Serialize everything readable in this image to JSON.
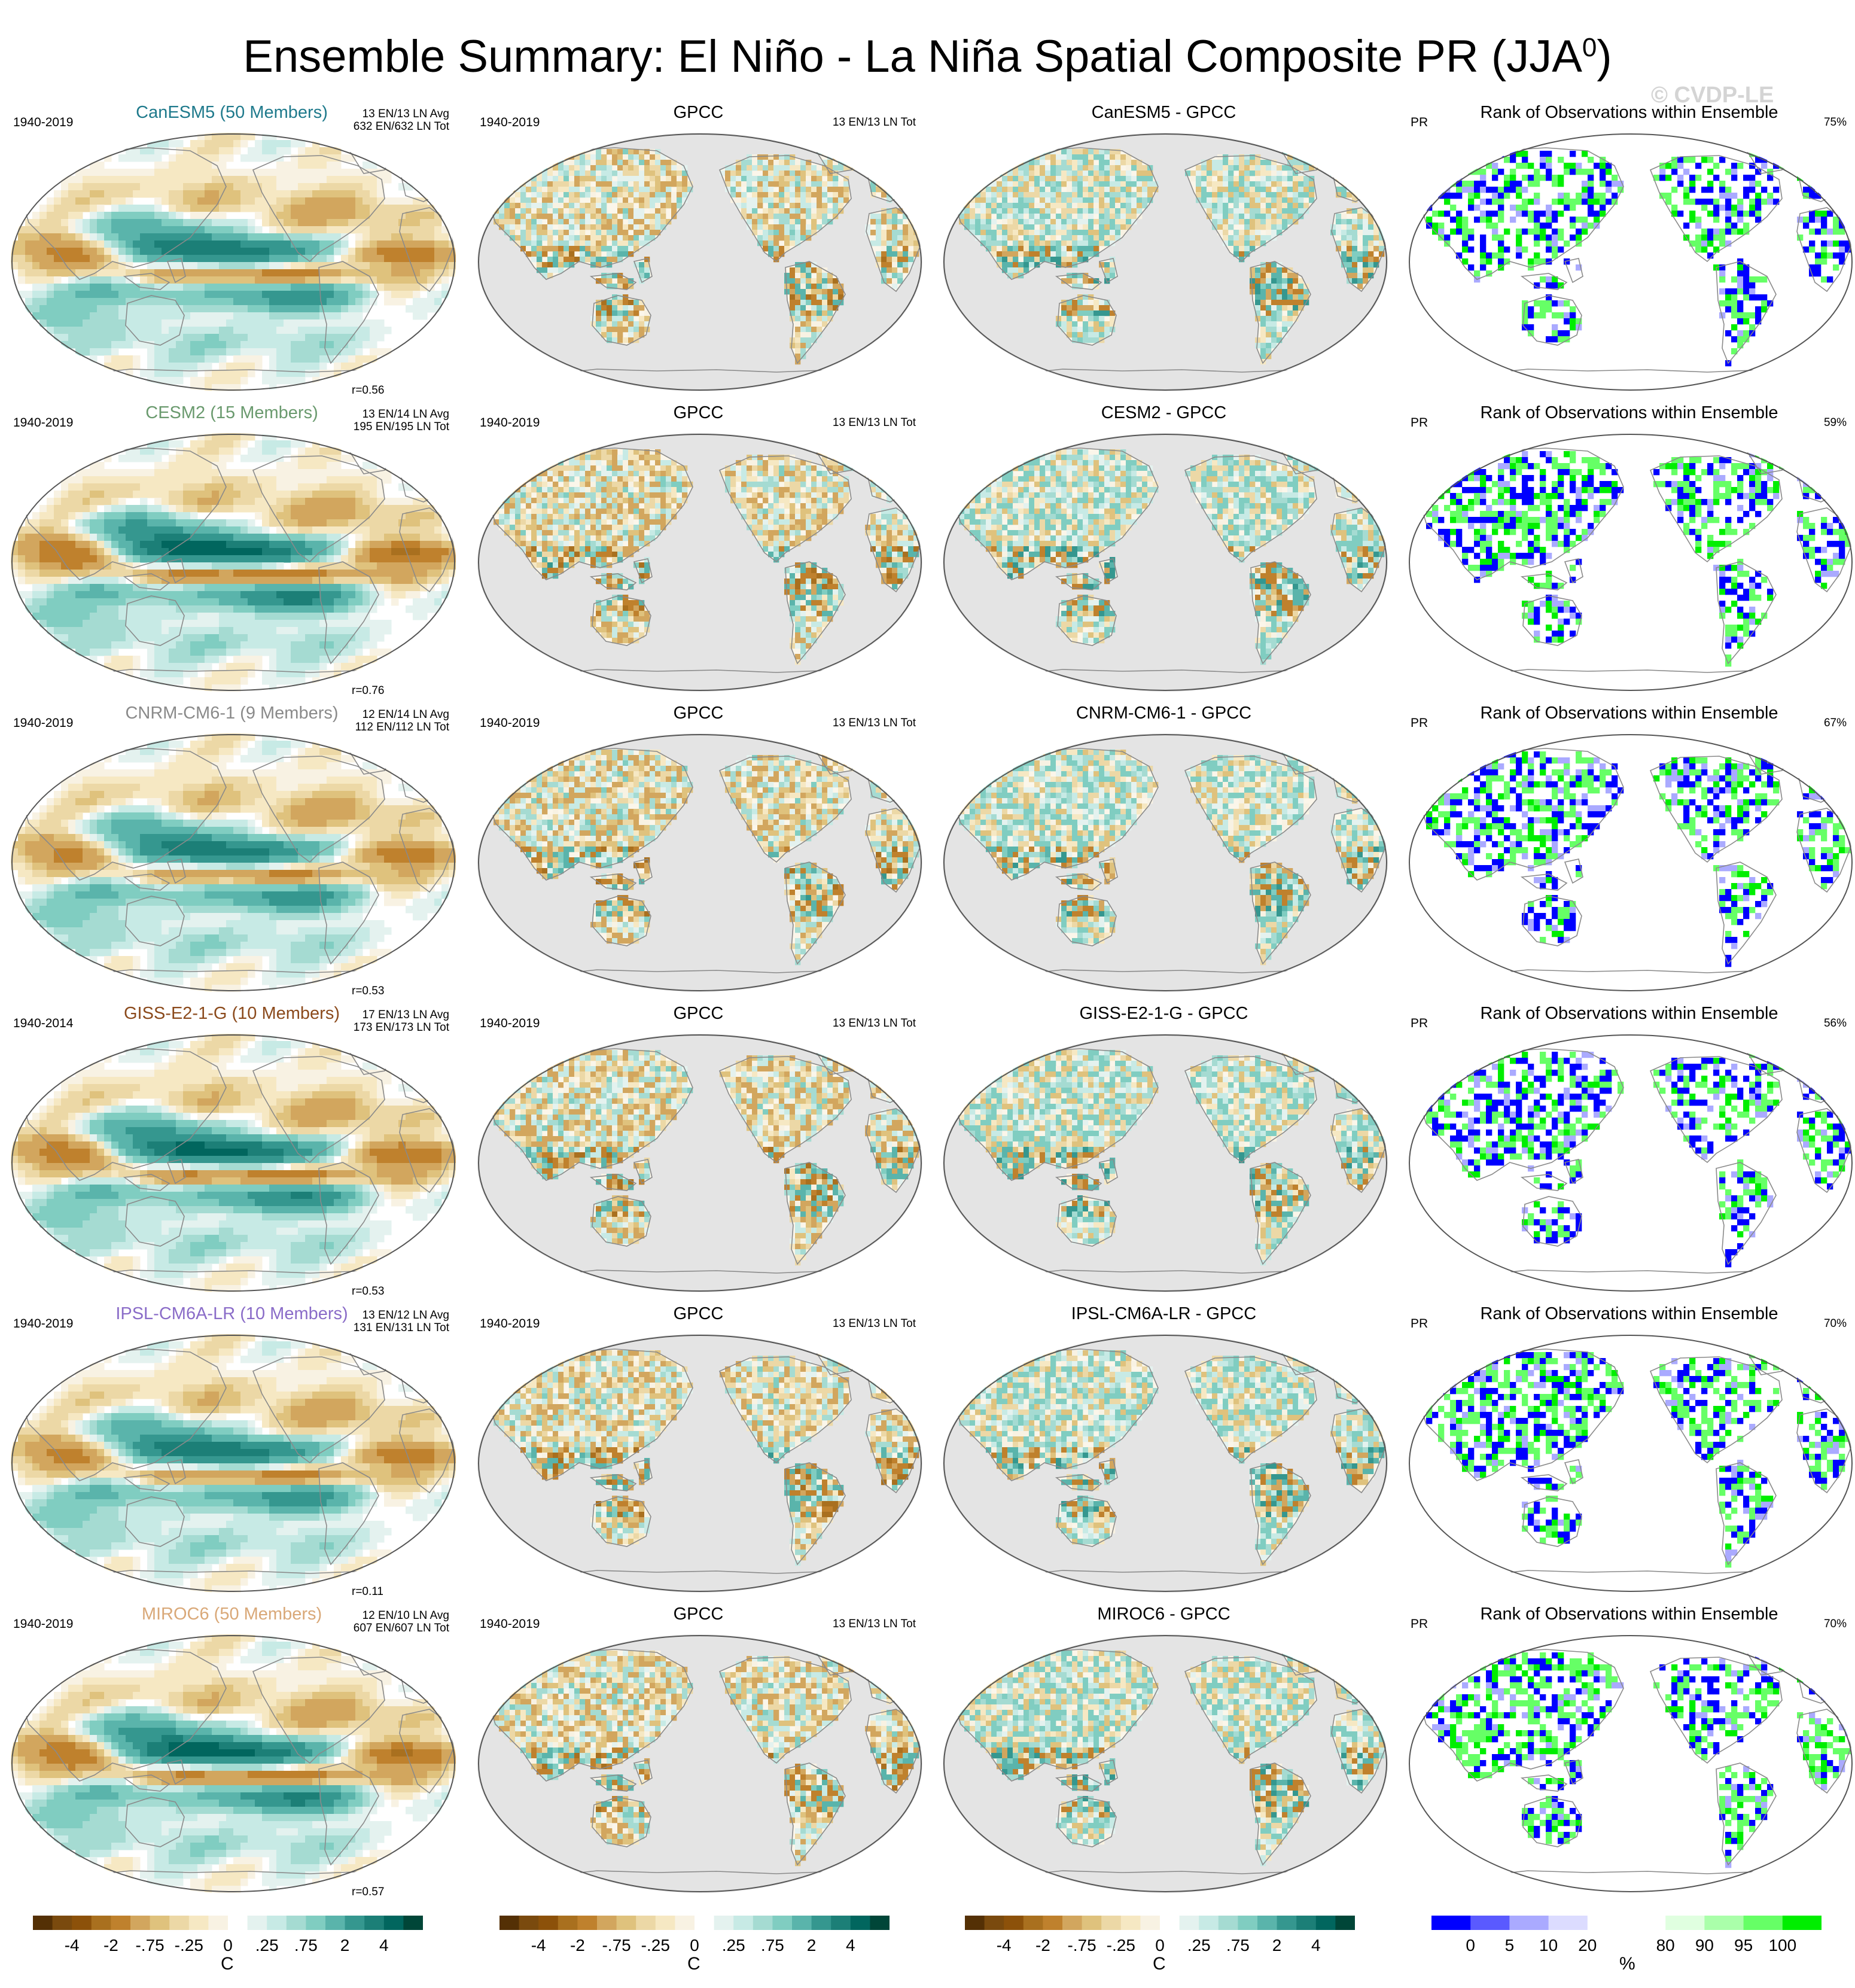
{
  "title": {
    "text": "Ensemble Summary: El Niño - La Niña Spatial Composite PR (JJA",
    "sup": "0",
    "close": ")"
  },
  "watermark": "© CVDP-LE",
  "colors": {
    "ocean_gray": "#e4e4e4",
    "coast": "#8a8a8a",
    "brown_teal_scale": [
      "#543005",
      "#7a4a0e",
      "#8c510a",
      "#a9701f",
      "#bf812d",
      "#d2a65e",
      "#dfc27d",
      "#ecd8a6",
      "#f6e8c3",
      "#f8f2e3",
      "#ffffff",
      "#e4f2ef",
      "#c7eae5",
      "#a5dbd2",
      "#80cdc1",
      "#5ab4ab",
      "#35978f",
      "#1c7f77",
      "#01665e",
      "#004638"
    ],
    "rank_scale": [
      "#0000ff",
      "#5a5aff",
      "#aaaaff",
      "#dcdcff",
      "#ffffff",
      "#ffffff",
      "#e0ffe0",
      "#aaffaa",
      "#66ff66",
      "#00ee00"
    ]
  },
  "colorbars": [
    {
      "ticks": [
        "-4",
        "-2",
        "-.75",
        "-.25",
        "0",
        ".25",
        ".75",
        "2",
        "4"
      ],
      "unit": "C"
    },
    {
      "ticks": [
        "-4",
        "-2",
        "-.75",
        "-.25",
        "0",
        ".25",
        ".75",
        "2",
        "4"
      ],
      "unit": "C"
    },
    {
      "ticks": [
        "-4",
        "-2",
        "-.75",
        "-.25",
        "0",
        ".25",
        ".75",
        "2",
        "4"
      ],
      "unit": "C"
    },
    {
      "ticks": [
        "0",
        "5",
        "10",
        "20",
        "80",
        "90",
        "95",
        "100"
      ],
      "unit": "%"
    }
  ],
  "rows": [
    {
      "model": "CanESM5 (50 Members)",
      "model_color": "#1f7a8c",
      "period": "1940-2019",
      "counts_avg": "13 EN/13 LN Avg",
      "counts_tot": "632 EN/632 LN Tot",
      "r": "r=0.56",
      "obs_title": "GPCC",
      "obs_period": "1940-2019",
      "obs_counts": "13 EN/13 LN Tot",
      "diff_title": "CanESM5 - GPCC",
      "rank_title": "Rank of Observations within Ensemble",
      "rank_var": "PR",
      "rank_pct": "75%"
    },
    {
      "model": "CESM2 (15 Members)",
      "model_color": "#6a9a6e",
      "period": "1940-2019",
      "counts_avg": "13 EN/14 LN Avg",
      "counts_tot": "195 EN/195 LN Tot",
      "r": "r=0.76",
      "obs_title": "GPCC",
      "obs_period": "1940-2019",
      "obs_counts": "13 EN/13 LN Tot",
      "diff_title": "CESM2 - GPCC",
      "rank_title": "Rank of Observations within Ensemble",
      "rank_var": "PR",
      "rank_pct": "59%"
    },
    {
      "model": "CNRM-CM6-1 (9 Members)",
      "model_color": "#8a8a8a",
      "period": "1940-2019",
      "counts_avg": "12 EN/14 LN Avg",
      "counts_tot": "112 EN/112 LN Tot",
      "r": "r=0.53",
      "obs_title": "GPCC",
      "obs_period": "1940-2019",
      "obs_counts": "13 EN/13 LN Tot",
      "diff_title": "CNRM-CM6-1 - GPCC",
      "rank_title": "Rank of Observations within Ensemble",
      "rank_var": "PR",
      "rank_pct": "67%"
    },
    {
      "model": "GISS-E2-1-G (10 Members)",
      "model_color": "#8b4a1c",
      "period": "1940-2014",
      "counts_avg": "17 EN/13 LN Avg",
      "counts_tot": "173 EN/173 LN Tot",
      "r": "r=0.53",
      "obs_title": "GPCC",
      "obs_period": "1940-2019",
      "obs_counts": "13 EN/13 LN Tot",
      "diff_title": "GISS-E2-1-G - GPCC",
      "rank_title": "Rank of Observations within Ensemble",
      "rank_var": "PR",
      "rank_pct": "56%"
    },
    {
      "model": "IPSL-CM6A-LR (10 Members)",
      "model_color": "#8a6cc8",
      "period": "1940-2019",
      "counts_avg": "13 EN/12 LN Avg",
      "counts_tot": "131 EN/131 LN Tot",
      "r": "r=0.11",
      "obs_title": "GPCC",
      "obs_period": "1940-2019",
      "obs_counts": "13 EN/13 LN Tot",
      "diff_title": "IPSL-CM6A-LR - GPCC",
      "rank_title": "Rank of Observations within Ensemble",
      "rank_var": "PR",
      "rank_pct": "70%"
    },
    {
      "model": "MIROC6 (50 Members)",
      "model_color": "#d9a878",
      "period": "1940-2019",
      "counts_avg": "12 EN/10 LN Avg",
      "counts_tot": "607 EN/607 LN Tot",
      "r": "r=0.57",
      "obs_title": "GPCC",
      "obs_period": "1940-2019",
      "obs_counts": "13 EN/13 LN Tot",
      "diff_title": "MIROC6 - GPCC",
      "rank_title": "Rank of Observations within Ensemble",
      "rank_var": "PR",
      "rank_pct": "70%"
    }
  ],
  "chart_data": {
    "type": "heatmap",
    "title": "Ensemble Summary: El Niño - La Niña Spatial Composite PR (JJA0)",
    "layout": "6 rows x 4 columns of global map panels",
    "columns": [
      "ensemble mean composite",
      "GPCC",
      "model - GPCC",
      "Rank of Observations within Ensemble"
    ],
    "series": [
      {
        "name": "CanESM5 (50 Members)",
        "pattern_correlation": 0.56,
        "rank_pct": 75
      },
      {
        "name": "CESM2 (15 Members)",
        "pattern_correlation": 0.76,
        "rank_pct": 59
      },
      {
        "name": "CNRM-CM6-1 (9 Members)",
        "pattern_correlation": 0.53,
        "rank_pct": 67
      },
      {
        "name": "GISS-E2-1-G (10 Members)",
        "pattern_correlation": 0.53,
        "rank_pct": 56
      },
      {
        "name": "IPSL-CM6A-LR (10 Members)",
        "pattern_correlation": 0.11,
        "rank_pct": 70
      },
      {
        "name": "MIROC6 (50 Members)",
        "pattern_correlation": 0.57,
        "rank_pct": 70
      }
    ],
    "composite_scale_ticks": [
      -4,
      -2,
      -0.75,
      -0.25,
      0,
      0.25,
      0.75,
      2,
      4
    ],
    "composite_unit": "C",
    "rank_scale_ticks": [
      0,
      5,
      10,
      20,
      80,
      90,
      95,
      100
    ],
    "rank_unit": "%",
    "legend": "bottom"
  }
}
